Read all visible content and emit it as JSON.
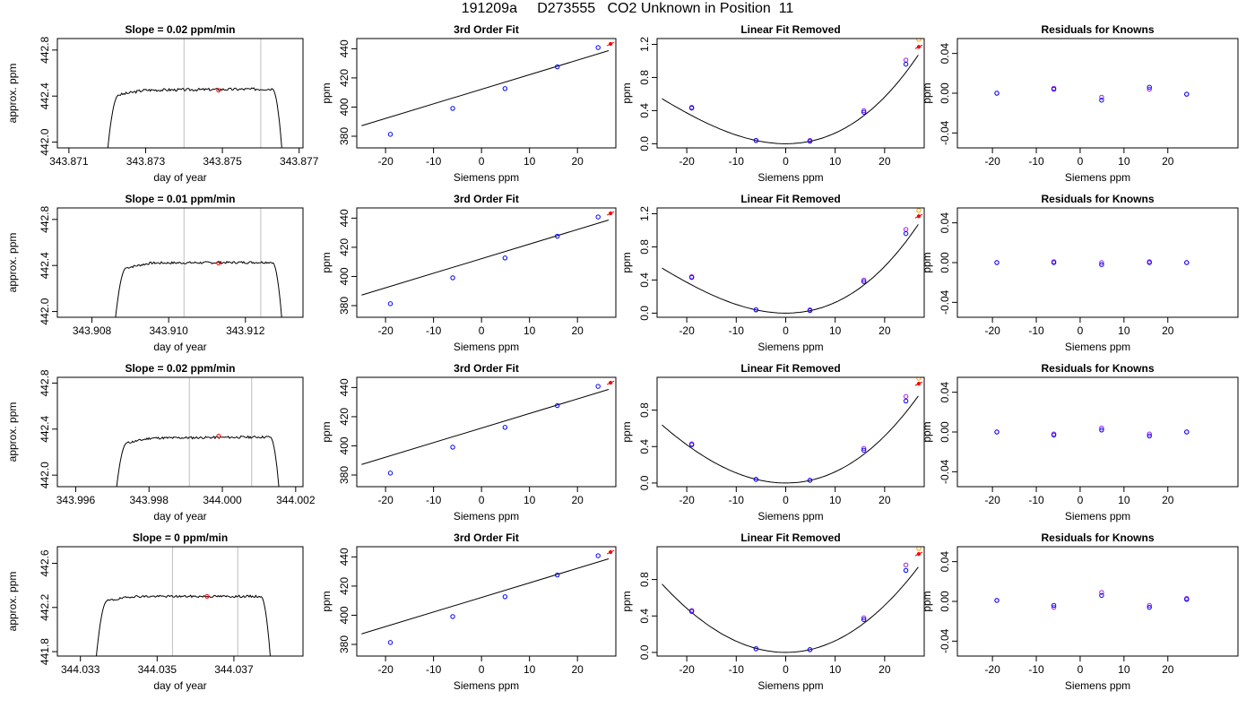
{
  "title": "191209a     D273555   CO2 Unknown in Position  11",
  "colors": {
    "line": "#000000",
    "grid": "#bebebe",
    "known": "#0000ff",
    "known2": "#a020f0",
    "unknown": "#ff0000",
    "fit_mark": "#ffa500"
  },
  "chart_data": [
    {
      "type": "line",
      "row": 0,
      "col": 0,
      "title": "Slope =  0.02  ppm/min",
      "xlabel": "day of year",
      "ylabel": "approx. ppm",
      "xlim": [
        343.8707,
        343.8771
      ],
      "ylim": [
        441.95,
        442.9
      ],
      "xticks": [
        343.871,
        343.873,
        343.875,
        343.877
      ],
      "xtick_labels": [
        "343.871",
        "343.873",
        "343.875",
        "343.877"
      ],
      "yticks": [
        442.0,
        442.4,
        442.8
      ],
      "ytick_labels": [
        "442.0",
        "442.4",
        "442.8"
      ],
      "vlines": [
        343.874,
        343.876
      ],
      "series": {
        "t0": 343.872,
        "t1": 343.8766,
        "rise_end": 343.8723,
        "fall_start": 343.8763,
        "base": 441.9,
        "level": 442.45,
        "slope": 0.012,
        "noise": 0.012,
        "seed": 3
      },
      "marker": {
        "x": 343.8749,
        "y": 442.45
      }
    },
    {
      "type": "scatter",
      "row": 0,
      "col": 1,
      "title": "3rd Order Fit",
      "xlabel": "Siemens ppm",
      "ylabel": "ppm",
      "xlim": [
        -26,
        28
      ],
      "ylim": [
        372,
        447
      ],
      "xticks": [
        -20,
        -10,
        0,
        10,
        20
      ],
      "xtick_labels": [
        "-20",
        "-10",
        "0",
        "10",
        "20"
      ],
      "yticks": [
        380,
        400,
        420,
        440
      ],
      "ytick_labels": [
        "380",
        "400",
        "420",
        "440"
      ],
      "fit": {
        "x0": -25,
        "x1": 26.5,
        "a": 412.2,
        "b": 1.0
      },
      "knowns": [
        [
          -19,
          381.3
        ],
        [
          -6,
          399.1
        ],
        [
          4.9,
          412.7
        ],
        [
          15.8,
          427.6
        ],
        [
          24.3,
          440.8
        ]
      ],
      "unknown": [
        26.9,
        443.3
      ]
    },
    {
      "type": "scatter",
      "row": 0,
      "col": 2,
      "title": "Linear Fit Removed",
      "xlabel": "Siemens ppm",
      "ylabel": "ppm",
      "xlim": [
        -26,
        28
      ],
      "ylim": [
        -0.05,
        1.27
      ],
      "xticks": [
        -20,
        -10,
        0,
        10,
        20
      ],
      "xtick_labels": [
        "-20",
        "-10",
        "0",
        "10",
        "20"
      ],
      "yticks": [
        0.0,
        0.4,
        0.8,
        1.2
      ],
      "ytick_labels": [
        "0.0",
        "0.4",
        "0.8",
        "1.2"
      ],
      "curve": {
        "x0": -25,
        "x1": 26.8,
        "a": 0.00117,
        "b": 1.2e-05
      },
      "knowns": [
        [
          -19,
          0.43
        ],
        [
          -6,
          0.04
        ],
        [
          4.9,
          0.03
        ],
        [
          15.8,
          0.38
        ],
        [
          24.3,
          0.96
        ]
      ],
      "knowns2": [
        [
          -19,
          0.44
        ],
        [
          -6,
          0.04
        ],
        [
          4.9,
          0.04
        ],
        [
          15.8,
          0.4
        ],
        [
          24.3,
          1.01
        ]
      ],
      "unknown": [
        26.9,
        1.17
      ],
      "unknown2": [
        26.9,
        1.26
      ]
    },
    {
      "type": "scatter",
      "row": 0,
      "col": 3,
      "title": "Residuals for Knowns",
      "xlabel": "Siemens ppm",
      "ylabel": "ppm",
      "xlim": [
        -28,
        36
      ],
      "ylim": [
        -0.055,
        0.055
      ],
      "xticks": [
        -20,
        -10,
        0,
        10,
        20
      ],
      "xtick_labels": [
        "-20",
        "-10",
        "0",
        "10",
        "20"
      ],
      "yticks": [
        -0.04,
        0.0,
        0.04
      ],
      "ytick_labels": [
        "-0.04",
        "0.00",
        "0.04"
      ],
      "knowns": [
        [
          -19,
          0.0
        ],
        [
          -6,
          0.004
        ],
        [
          4.9,
          -0.007
        ],
        [
          15.8,
          0.006
        ],
        [
          24.3,
          -0.001
        ]
      ],
      "knowns2": [
        [
          -19,
          0.0
        ],
        [
          -6,
          0.005
        ],
        [
          4.9,
          -0.004
        ],
        [
          15.8,
          0.004
        ],
        [
          24.3,
          -0.001
        ]
      ]
    },
    {
      "type": "line",
      "row": 1,
      "col": 0,
      "title": "Slope =  0.01  ppm/min",
      "xlabel": "day of year",
      "ylabel": "approx. ppm",
      "xlim": [
        343.9071,
        343.9135
      ],
      "ylim": [
        441.95,
        442.9
      ],
      "xticks": [
        343.908,
        343.91,
        343.912
      ],
      "xtick_labels": [
        "343.908",
        "343.910",
        "343.912"
      ],
      "yticks": [
        442.0,
        442.4,
        442.8
      ],
      "ytick_labels": [
        "442.0",
        "442.4",
        "442.8"
      ],
      "vlines": [
        343.9104,
        343.9124
      ],
      "series": {
        "t0": 343.9086,
        "t1": 343.913,
        "rise_end": 343.9089,
        "fall_start": 343.9127,
        "base": 441.9,
        "level": 442.42,
        "slope": 0.008,
        "noise": 0.01,
        "seed": 7
      },
      "marker": {
        "x": 343.9113,
        "y": 442.42
      }
    },
    {
      "type": "scatter",
      "row": 1,
      "col": 1,
      "title": "3rd Order Fit",
      "xlabel": "Siemens ppm",
      "ylabel": "ppm",
      "xlim": [
        -26,
        28
      ],
      "ylim": [
        372,
        447
      ],
      "xticks": [
        -20,
        -10,
        0,
        10,
        20
      ],
      "xtick_labels": [
        "-20",
        "-10",
        "0",
        "10",
        "20"
      ],
      "yticks": [
        380,
        400,
        420,
        440
      ],
      "ytick_labels": [
        "380",
        "400",
        "420",
        "440"
      ],
      "fit": {
        "x0": -25,
        "x1": 26.5,
        "a": 412.2,
        "b": 1.0
      },
      "knowns": [
        [
          -19,
          381.3
        ],
        [
          -6,
          399.1
        ],
        [
          4.9,
          412.7
        ],
        [
          15.8,
          427.6
        ],
        [
          24.3,
          440.8
        ]
      ],
      "unknown": [
        26.9,
        443.3
      ]
    },
    {
      "type": "scatter",
      "row": 1,
      "col": 2,
      "title": "Linear Fit Removed",
      "xlabel": "Siemens ppm",
      "ylabel": "ppm",
      "xlim": [
        -26,
        28
      ],
      "ylim": [
        -0.05,
        1.27
      ],
      "xticks": [
        -20,
        -10,
        0,
        10,
        20
      ],
      "xtick_labels": [
        "-20",
        "-10",
        "0",
        "10",
        "20"
      ],
      "yticks": [
        0.0,
        0.4,
        0.8,
        1.2
      ],
      "ytick_labels": [
        "0.0",
        "0.4",
        "0.8",
        "1.2"
      ],
      "curve": {
        "x0": -25,
        "x1": 26.8,
        "a": 0.00117,
        "b": 1.2e-05
      },
      "knowns": [
        [
          -19,
          0.43
        ],
        [
          -6,
          0.04
        ],
        [
          4.9,
          0.03
        ],
        [
          15.8,
          0.38
        ],
        [
          24.3,
          0.96
        ]
      ],
      "knowns2": [
        [
          -19,
          0.44
        ],
        [
          -6,
          0.04
        ],
        [
          4.9,
          0.04
        ],
        [
          15.8,
          0.4
        ],
        [
          24.3,
          1.01
        ]
      ],
      "unknown": [
        26.9,
        1.17
      ],
      "unknown2": [
        26.9,
        1.24
      ]
    },
    {
      "type": "scatter",
      "row": 1,
      "col": 3,
      "title": "Residuals for Knowns",
      "xlabel": "Siemens ppm",
      "ylabel": "ppm",
      "xlim": [
        -28,
        36
      ],
      "ylim": [
        -0.055,
        0.055
      ],
      "xticks": [
        -20,
        -10,
        0,
        10,
        20
      ],
      "xtick_labels": [
        "-20",
        "-10",
        "0",
        "10",
        "20"
      ],
      "yticks": [
        -0.04,
        0.0,
        0.04
      ],
      "ytick_labels": [
        "-0.04",
        "0.00",
        "0.04"
      ],
      "knowns": [
        [
          -19,
          0.0
        ],
        [
          -6,
          0.0
        ],
        [
          4.9,
          -0.002
        ],
        [
          15.8,
          0.0
        ],
        [
          24.3,
          0.0
        ]
      ],
      "knowns2": [
        [
          -19,
          0.0
        ],
        [
          -6,
          0.001
        ],
        [
          4.9,
          0.0
        ],
        [
          15.8,
          0.001
        ],
        [
          24.3,
          0.0
        ]
      ]
    },
    {
      "type": "line",
      "row": 2,
      "col": 0,
      "title": "Slope =  0.02  ppm/min",
      "xlabel": "day of year",
      "ylabel": "approx. ppm",
      "xlim": [
        343.9955,
        344.0022
      ],
      "ylim": [
        441.9,
        442.85
      ],
      "xticks": [
        343.996,
        343.998,
        344.0,
        344.002
      ],
      "xtick_labels": [
        "343.996",
        "343.998",
        "344.000",
        "344.002"
      ],
      "yticks": [
        442.0,
        442.4,
        442.8
      ],
      "ytick_labels": [
        "442.0",
        "442.4",
        "442.8"
      ],
      "vlines": [
        343.9991,
        344.0008
      ],
      "series": {
        "t0": 343.9971,
        "t1": 344.0016,
        "rise_end": 343.9974,
        "fall_start": 344.0013,
        "base": 441.85,
        "level": 442.32,
        "slope": 0.012,
        "noise": 0.01,
        "seed": 11
      },
      "marker": {
        "x": 343.9999,
        "y": 442.34
      }
    },
    {
      "type": "scatter",
      "row": 2,
      "col": 1,
      "title": "3rd Order Fit",
      "xlabel": "Siemens ppm",
      "ylabel": "ppm",
      "xlim": [
        -26,
        28
      ],
      "ylim": [
        372,
        447
      ],
      "xticks": [
        -20,
        -10,
        0,
        10,
        20
      ],
      "xtick_labels": [
        "-20",
        "-10",
        "0",
        "10",
        "20"
      ],
      "yticks": [
        380,
        400,
        420,
        440
      ],
      "ytick_labels": [
        "380",
        "400",
        "420",
        "440"
      ],
      "fit": {
        "x0": -25,
        "x1": 26.5,
        "a": 412.2,
        "b": 1.0
      },
      "knowns": [
        [
          -19,
          381.3
        ],
        [
          -6,
          399.1
        ],
        [
          4.9,
          412.7
        ],
        [
          15.8,
          427.6
        ],
        [
          24.3,
          440.8
        ]
      ],
      "unknown": [
        26.9,
        443.3
      ]
    },
    {
      "type": "scatter",
      "row": 2,
      "col": 2,
      "title": "Linear Fit Removed",
      "xlabel": "Siemens ppm",
      "ylabel": "ppm",
      "xlim": [
        -26,
        28
      ],
      "ylim": [
        -0.04,
        1.16
      ],
      "xticks": [
        -20,
        -10,
        0,
        10,
        20
      ],
      "xtick_labels": [
        "-20",
        "-10",
        "0",
        "10",
        "20"
      ],
      "yticks": [
        0.0,
        0.4,
        0.8
      ],
      "ytick_labels": [
        "0.0",
        "0.4",
        "0.8"
      ],
      "curve": {
        "x0": -25,
        "x1": 26.8,
        "a": 0.00117,
        "b": 6e-06
      },
      "knowns": [
        [
          -19,
          0.42
        ],
        [
          -6,
          0.04
        ],
        [
          4.9,
          0.03
        ],
        [
          15.8,
          0.36
        ],
        [
          24.3,
          0.9
        ]
      ],
      "knowns2": [
        [
          -19,
          0.43
        ],
        [
          -6,
          0.04
        ],
        [
          4.9,
          0.03
        ],
        [
          15.8,
          0.38
        ],
        [
          24.3,
          0.95
        ]
      ],
      "unknown": [
        26.9,
        1.09
      ],
      "unknown2": [
        26.9,
        1.15
      ]
    },
    {
      "type": "scatter",
      "row": 2,
      "col": 3,
      "title": "Residuals for Knowns",
      "xlabel": "Siemens ppm",
      "ylabel": "ppm",
      "xlim": [
        -28,
        36
      ],
      "ylim": [
        -0.055,
        0.055
      ],
      "xticks": [
        -20,
        -10,
        0,
        10,
        20
      ],
      "xtick_labels": [
        "-20",
        "-10",
        "0",
        "10",
        "20"
      ],
      "yticks": [
        -0.04,
        0.0,
        0.04
      ],
      "ytick_labels": [
        "-0.04",
        "0.00",
        "0.04"
      ],
      "knowns": [
        [
          -19,
          0.0
        ],
        [
          -6,
          -0.003
        ],
        [
          4.9,
          0.002
        ],
        [
          15.8,
          -0.004
        ],
        [
          24.3,
          0.0
        ]
      ],
      "knowns2": [
        [
          -19,
          0.0
        ],
        [
          -6,
          -0.002
        ],
        [
          4.9,
          0.004
        ],
        [
          15.8,
          -0.002
        ],
        [
          24.3,
          0.0
        ]
      ]
    },
    {
      "type": "line",
      "row": 3,
      "col": 0,
      "title": "Slope =  0  ppm/min",
      "xlabel": "day of year",
      "ylabel": "approx. ppm",
      "xlim": [
        344.0324,
        344.0388
      ],
      "ylim": [
        441.76,
        442.75
      ],
      "xticks": [
        344.033,
        344.035,
        344.037
      ],
      "xtick_labels": [
        "344.033",
        "344.035",
        "344.037"
      ],
      "yticks": [
        441.8,
        442.2,
        442.6
      ],
      "ytick_labels": [
        "441.8",
        "442.2",
        "442.6"
      ],
      "vlines": [
        344.0354,
        344.0371
      ],
      "series": {
        "t0": 344.0334,
        "t1": 344.038,
        "rise_end": 344.0337,
        "fall_start": 344.0377,
        "base": 441.7,
        "level": 442.3,
        "slope": 0.0,
        "noise": 0.01,
        "seed": 19
      },
      "marker": {
        "x": 344.0363,
        "y": 442.3
      }
    },
    {
      "type": "scatter",
      "row": 3,
      "col": 1,
      "title": "3rd Order Fit",
      "xlabel": "Siemens ppm",
      "ylabel": "ppm",
      "xlim": [
        -26,
        28
      ],
      "ylim": [
        372,
        447
      ],
      "xticks": [
        -20,
        -10,
        0,
        10,
        20
      ],
      "xtick_labels": [
        "-20",
        "-10",
        "0",
        "10",
        "20"
      ],
      "yticks": [
        380,
        400,
        420,
        440
      ],
      "ytick_labels": [
        "380",
        "400",
        "420",
        "440"
      ],
      "fit": {
        "x0": -25,
        "x1": 26.5,
        "a": 412.2,
        "b": 1.0
      },
      "knowns": [
        [
          -19,
          381.3
        ],
        [
          -6,
          399.1
        ],
        [
          4.9,
          412.7
        ],
        [
          15.8,
          427.6
        ],
        [
          24.3,
          440.8
        ]
      ],
      "unknown": [
        26.9,
        443.3
      ]
    },
    {
      "type": "scatter",
      "row": 3,
      "col": 2,
      "title": "Linear Fit Removed",
      "xlabel": "Siemens ppm",
      "ylabel": "ppm",
      "xlim": [
        -26,
        28
      ],
      "ylim": [
        -0.04,
        1.16
      ],
      "xticks": [
        -20,
        -10,
        0,
        10,
        20
      ],
      "xtick_labels": [
        "-20",
        "-10",
        "0",
        "10",
        "20"
      ],
      "yticks": [
        0.0,
        0.4,
        0.8
      ],
      "ytick_labels": [
        "0.0",
        "0.4",
        "0.8"
      ],
      "curve": {
        "x0": -25,
        "x1": 26.8,
        "a": 0.00125,
        "b": 2e-06
      },
      "knowns": [
        [
          -19,
          0.45
        ],
        [
          -6,
          0.04
        ],
        [
          4.9,
          0.03
        ],
        [
          15.8,
          0.36
        ],
        [
          24.3,
          0.9
        ]
      ],
      "knowns2": [
        [
          -19,
          0.46
        ],
        [
          -6,
          0.04
        ],
        [
          4.9,
          0.03
        ],
        [
          15.8,
          0.38
        ],
        [
          24.3,
          0.96
        ]
      ],
      "unknown": [
        26.9,
        1.08
      ],
      "unknown2": [
        26.9,
        1.14
      ]
    },
    {
      "type": "scatter",
      "row": 3,
      "col": 3,
      "title": "Residuals for Knowns",
      "xlabel": "Siemens ppm",
      "ylabel": "ppm",
      "xlim": [
        -28,
        36
      ],
      "ylim": [
        -0.055,
        0.055
      ],
      "xticks": [
        -20,
        -10,
        0,
        10,
        20
      ],
      "xtick_labels": [
        "-20",
        "-10",
        "0",
        "10",
        "20"
      ],
      "yticks": [
        -0.04,
        0.0,
        0.04
      ],
      "ytick_labels": [
        "-0.04",
        "0.00",
        "0.04"
      ],
      "knowns": [
        [
          -19,
          0.001
        ],
        [
          -6,
          -0.004
        ],
        [
          4.9,
          0.006
        ],
        [
          15.8,
          -0.006
        ],
        [
          24.3,
          0.002
        ]
      ],
      "knowns2": [
        [
          -19,
          0.001
        ],
        [
          -6,
          -0.006
        ],
        [
          4.9,
          0.009
        ],
        [
          15.8,
          -0.004
        ],
        [
          24.3,
          0.003
        ]
      ]
    }
  ]
}
